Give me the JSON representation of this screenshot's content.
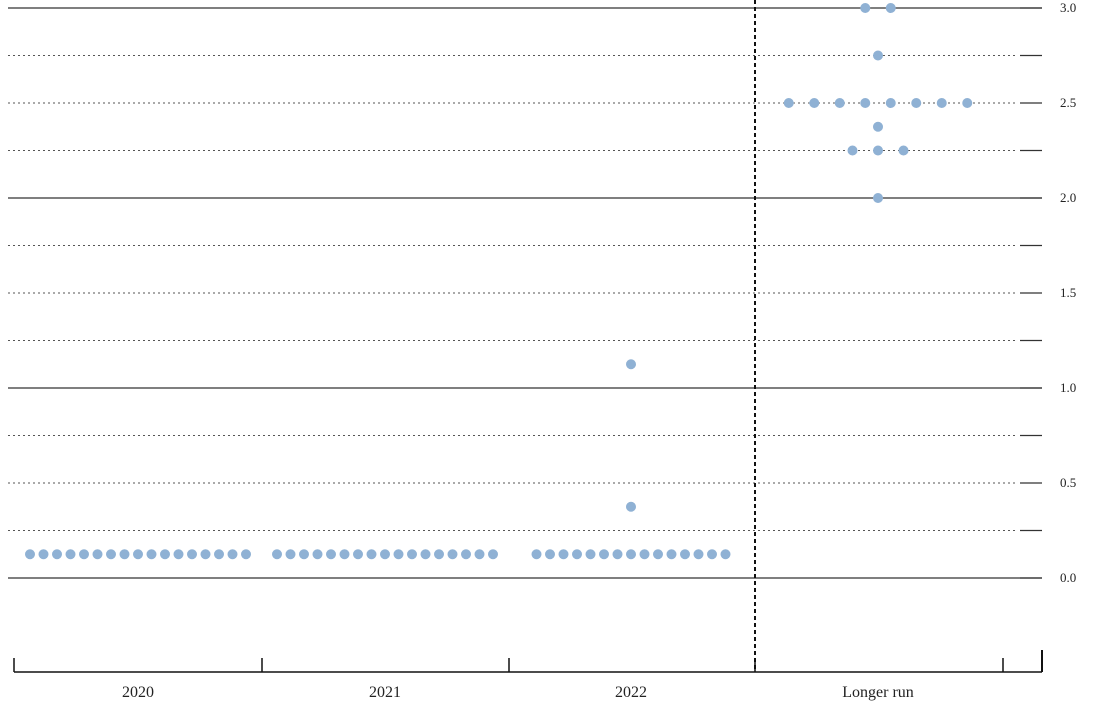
{
  "chart_data": {
    "type": "scatter",
    "title": "",
    "xlabel": "",
    "ylabel": "",
    "ylim": [
      -0.5,
      3.0
    ],
    "grid": true,
    "legend": "none",
    "categories": [
      "2020",
      "2021",
      "2022",
      "Longer run"
    ],
    "y_ticks": [
      {
        "value": 3.0,
        "label": "3.0"
      },
      {
        "value": 2.5,
        "label": "2.5"
      },
      {
        "value": 2.0,
        "label": "2.0"
      },
      {
        "value": 1.5,
        "label": "1.5"
      },
      {
        "value": 1.0,
        "label": "1.0"
      },
      {
        "value": 0.5,
        "label": "0.5"
      },
      {
        "value": 0.0,
        "label": "0.0"
      }
    ],
    "dot_color": "#8fb1d4",
    "series": [
      {
        "category": "2020",
        "points": [
          {
            "y": 0.125,
            "count": 17
          }
        ]
      },
      {
        "category": "2021",
        "points": [
          {
            "y": 0.125,
            "count": 17
          }
        ]
      },
      {
        "category": "2022",
        "points": [
          {
            "y": 0.125,
            "count": 15
          },
          {
            "y": 0.375,
            "count": 1
          },
          {
            "y": 1.125,
            "count": 1
          }
        ]
      },
      {
        "category": "Longer run",
        "points": [
          {
            "y": 2.0,
            "count": 1
          },
          {
            "y": 2.25,
            "count": 3
          },
          {
            "y": 2.375,
            "count": 1
          },
          {
            "y": 2.5,
            "count": 8
          },
          {
            "y": 2.75,
            "count": 1
          },
          {
            "y": 3.0,
            "count": 2
          }
        ]
      }
    ]
  }
}
